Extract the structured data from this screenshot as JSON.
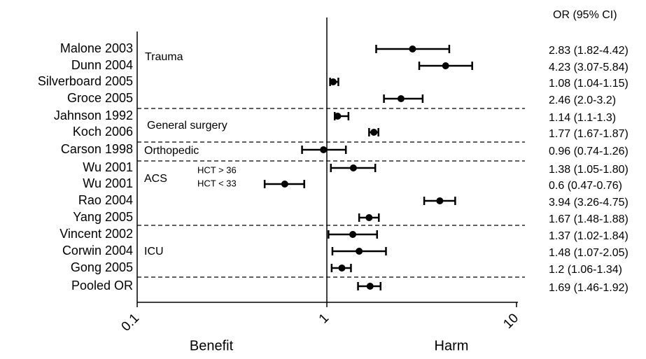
{
  "chart_data": {
    "type": "forest",
    "column_header": "OR (95% CI)",
    "categories": [
      "Malone 2003",
      "Dunn 2004",
      "Silverboard 2005",
      "Groce 2005",
      "Jahnson 1992",
      "Koch 2006",
      "Carson 1998",
      "Wu 2001",
      "Wu 2001",
      "Rao 2004",
      "Yang 2005",
      "Vincent 2002",
      "Corwin 2004",
      "Gong 2005",
      "Pooled OR"
    ],
    "values": [
      2.83,
      4.23,
      1.08,
      2.46,
      1.14,
      1.77,
      0.96,
      1.38,
      0.6,
      3.94,
      1.67,
      1.37,
      1.48,
      1.2,
      1.69
    ],
    "lower": [
      1.82,
      3.07,
      1.04,
      2.0,
      1.1,
      1.67,
      0.74,
      1.05,
      0.47,
      3.26,
      1.48,
      1.02,
      1.07,
      1.06,
      1.46
    ],
    "upper": [
      4.42,
      5.84,
      1.15,
      3.2,
      1.3,
      1.87,
      1.26,
      1.8,
      0.76,
      4.75,
      1.88,
      1.84,
      2.05,
      1.34,
      1.92
    ],
    "value_labels": [
      "2.83 (1.82-4.42)",
      "4.23 (3.07-5.84)",
      "1.08 (1.04-1.15)",
      "2.46 (2.0-3.2)",
      "1.14 (1.1-1.3)",
      "1.77 (1.67-1.87)",
      "0.96 (0.74-1.26)",
      "1.38 (1.05-1.80)",
      "0.6 (0.47-0.76)",
      "3.94 (3.26-4.75)",
      "1.67 (1.48-1.88)",
      "1.37 (1.02-1.84)",
      "1.48 (1.07-2.05)",
      "1.2 (1.06-1.34)",
      "1.69 (1.46-1.92)"
    ],
    "groups": [
      "Trauma",
      "General surgery",
      "Orthopedic",
      "ACS",
      "ICU"
    ],
    "subgroup_notes": [
      "HCT > 36",
      "HCT < 33"
    ],
    "xlabel_left": "Benefit",
    "xlabel_right": "Harm",
    "xscale": "log",
    "xlim": [
      0.1,
      10
    ],
    "xticks": [
      0.1,
      1,
      10
    ],
    "reference": 1,
    "color": "#000000"
  }
}
